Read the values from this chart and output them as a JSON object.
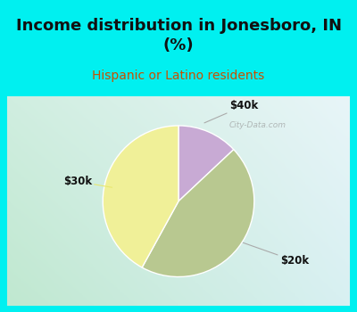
{
  "title": "Income distribution in Jonesboro, IN\n(%)",
  "subtitle": "Hispanic or Latino residents",
  "slices": [
    {
      "label": "$40k",
      "value": 13,
      "color": "#c8aad4"
    },
    {
      "label": "$20k",
      "value": 45,
      "color": "#b8c890"
    },
    {
      "label": "$30k",
      "value": 42,
      "color": "#f0f098"
    }
  ],
  "bg_cyan": "#00f0f0",
  "title_color": "#111111",
  "subtitle_color": "#c85000",
  "label_fontsize": 8.5,
  "title_fontsize": 13,
  "subtitle_fontsize": 10,
  "watermark_color": "#aaaaaa",
  "annotation_line_color": "#aaaaaa"
}
